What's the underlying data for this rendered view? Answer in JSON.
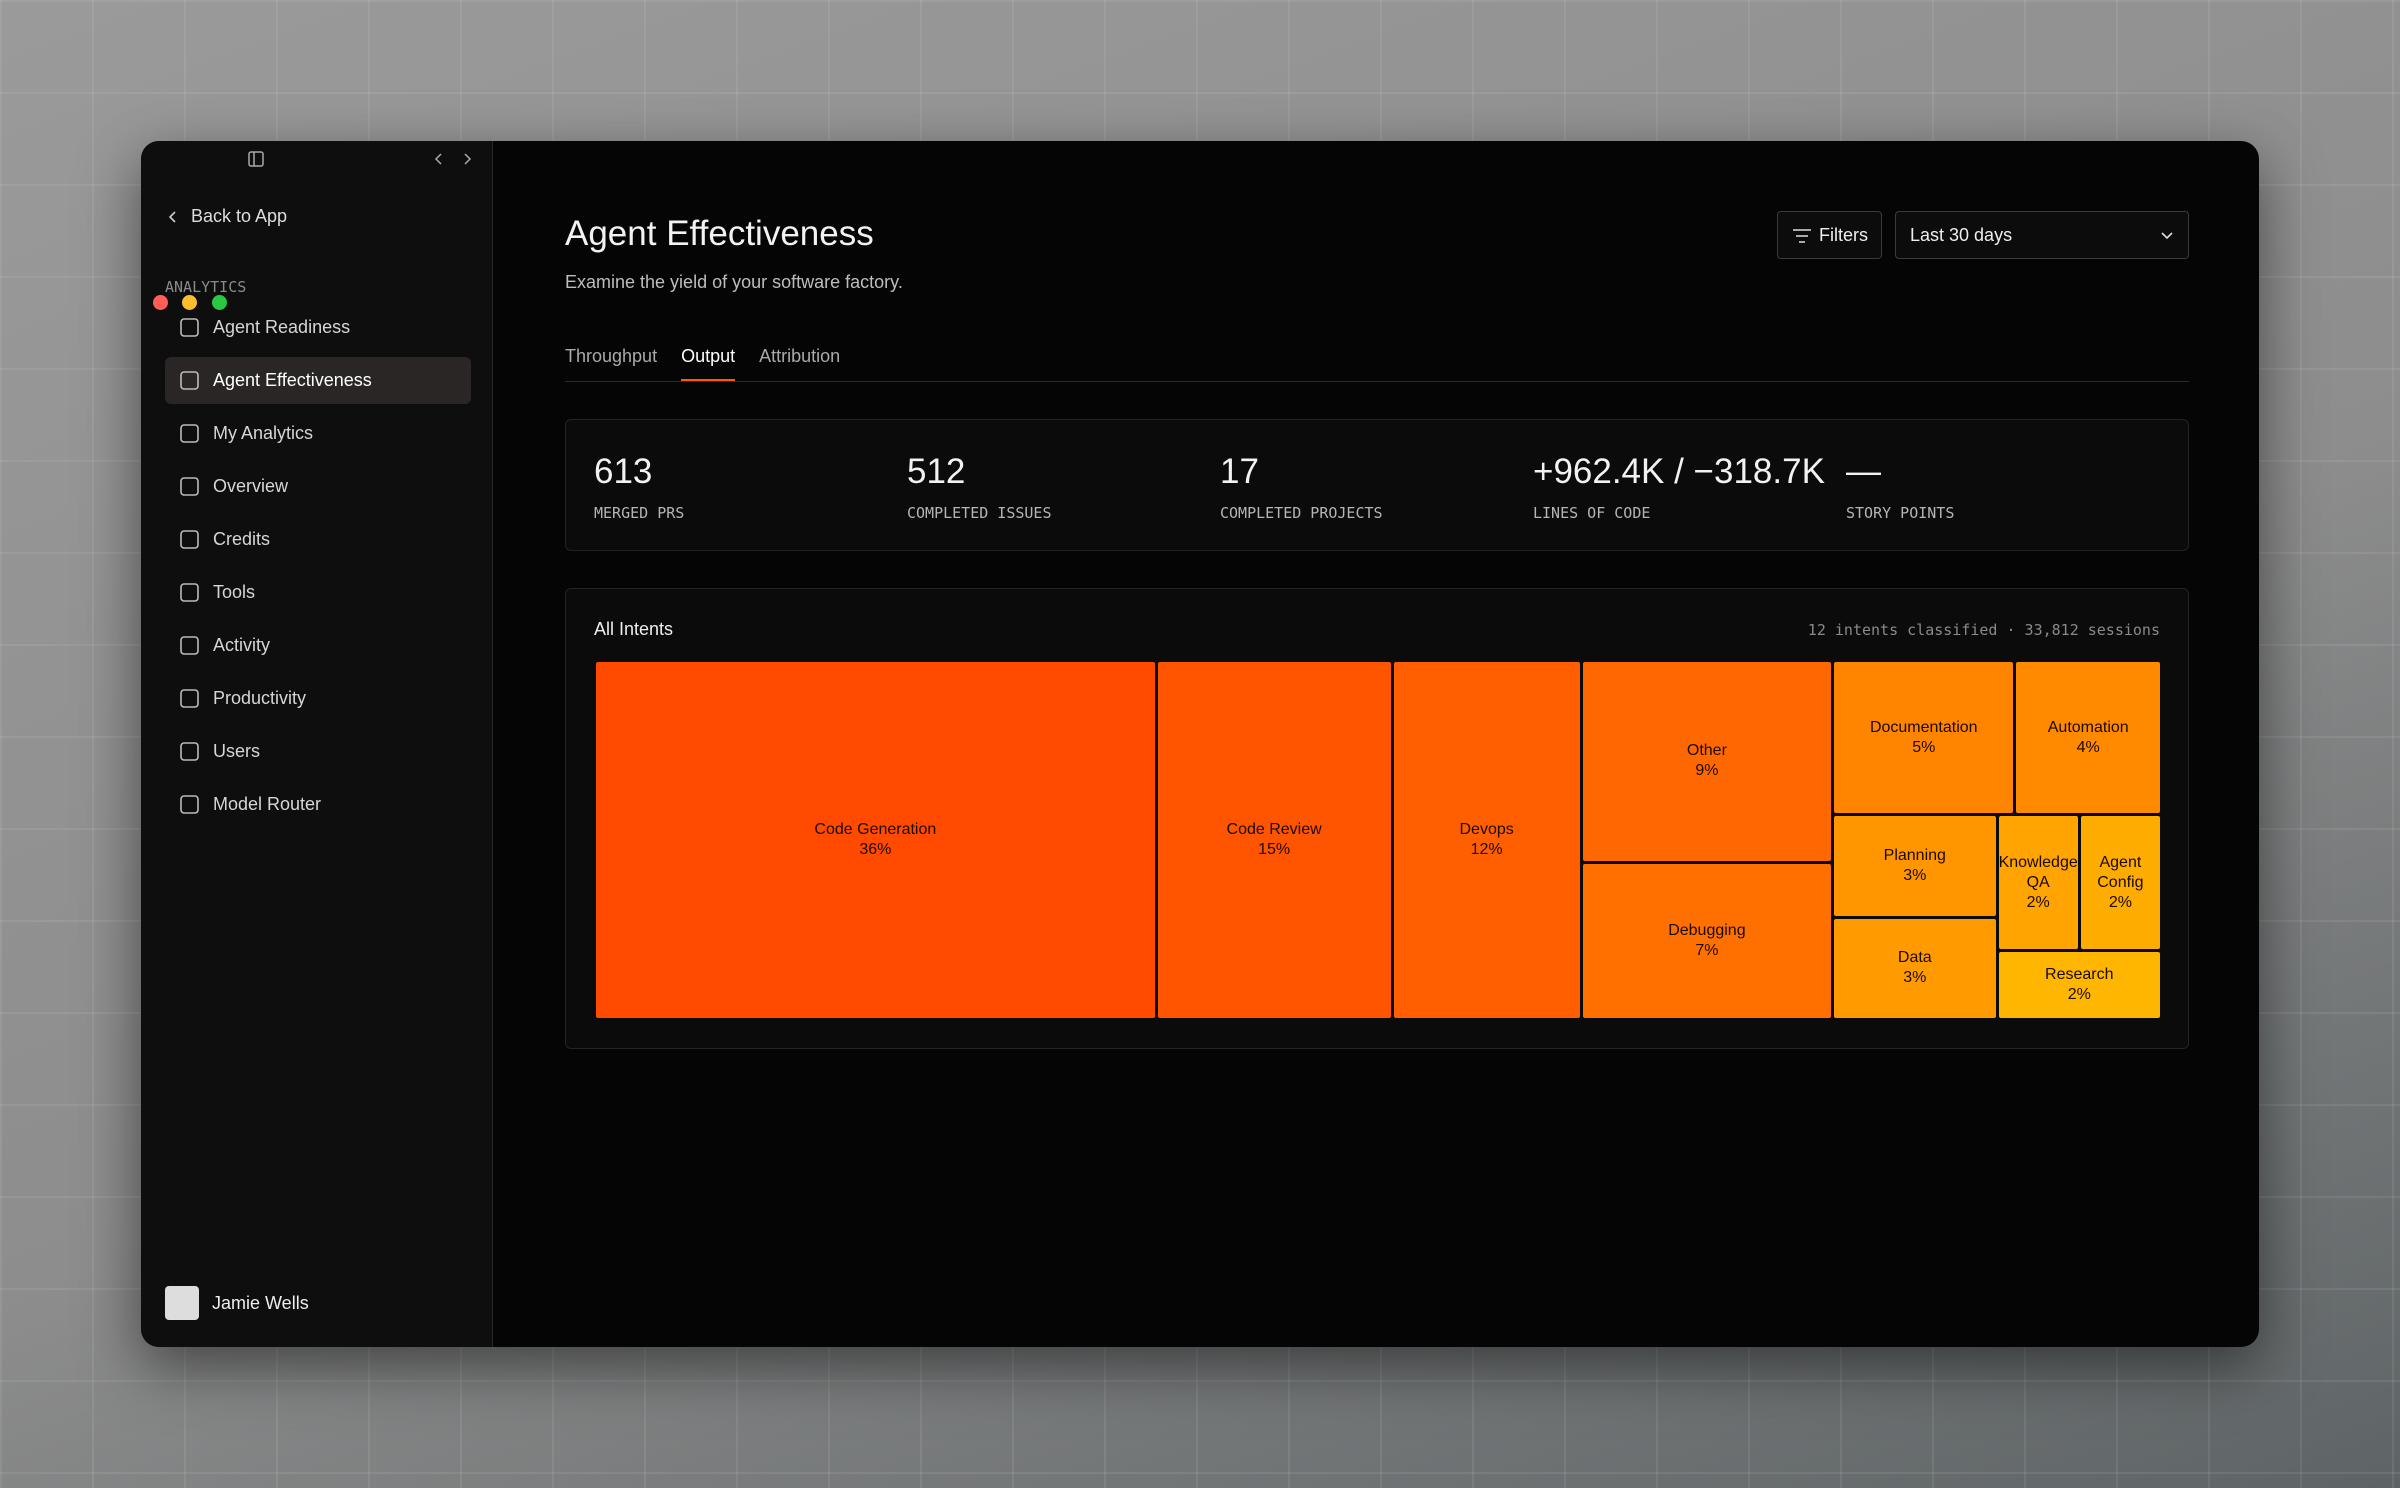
{
  "sidebar": {
    "back": "Back to App",
    "section": "ANALYTICS",
    "nav": [
      "Agent Readiness",
      "Agent Effectiveness",
      "My Analytics",
      "Overview",
      "Credits",
      "Tools",
      "Activity",
      "Productivity",
      "Users",
      "Model Router"
    ],
    "user": "Jamie Wells"
  },
  "header": {
    "title": "Agent Effectiveness",
    "subtitle": "Examine the yield of your software factory.",
    "filters": "Filters",
    "range": "Last 30 days"
  },
  "tabs": [
    "Throughput",
    "Output",
    "Attribution"
  ],
  "stats": [
    {
      "value": "613",
      "label": "MERGED PRS"
    },
    {
      "value": "512",
      "label": "COMPLETED ISSUES"
    },
    {
      "value": "17",
      "label": "COMPLETED PROJECTS"
    },
    {
      "value": "+962.4K / −318.7K",
      "label": "LINES OF CODE"
    },
    {
      "value": "—",
      "label": "STORY POINTS"
    }
  ],
  "treemap": {
    "title": "All Intents",
    "summary": "12 intents classified · 33,812 sessions",
    "tiles": [
      {
        "label": "Code Generation",
        "value": 36,
        "value_label": "36%",
        "color": "#ff4a00"
      },
      {
        "label": "Code Review",
        "value": 15,
        "value_label": "15%",
        "color": "#ff5400"
      },
      {
        "label": "Devops",
        "value": 12,
        "value_label": "12%",
        "color": "#ff5f00"
      },
      {
        "label": "Other",
        "value": 9,
        "value_label": "9%",
        "color": "#ff6700"
      },
      {
        "label": "Debugging",
        "value": 7,
        "value_label": "7%",
        "color": "#ff7000"
      },
      {
        "label": "Documentation",
        "value": 5,
        "value_label": "5%",
        "color": "#ff8400"
      },
      {
        "label": "Automation",
        "value": 4,
        "value_label": "4%",
        "color": "#ff8a00"
      },
      {
        "label": "Planning",
        "value": 3,
        "value_label": "3%",
        "color": "#ff9600"
      },
      {
        "label": "Data",
        "value": 3,
        "value_label": "3%",
        "color": "#ff9b00"
      },
      {
        "label": "Knowledge QA",
        "value": 2,
        "value_label": "2%",
        "color": "#ffa400"
      },
      {
        "label": "Agent Config",
        "value": 2,
        "value_label": "2%",
        "color": "#ffac00"
      },
      {
        "label": "Research",
        "value": 2,
        "value_label": "2%",
        "color": "#ffb600"
      }
    ]
  }
}
